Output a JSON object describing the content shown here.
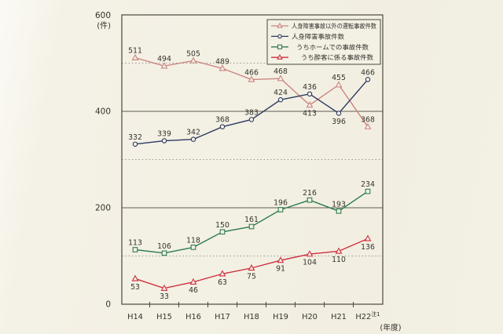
{
  "background_color": "#f3f0e4",
  "chart_data": {
    "type": "line",
    "title": "",
    "unit_label": "(件)",
    "x_axis_unit_label": "(年度)",
    "x_categories": [
      "H14",
      "H15",
      "H16",
      "H17",
      "H18",
      "H19",
      "H20",
      "H21",
      "H22"
    ],
    "x_last_category_superscript": "注1",
    "ylim": [
      0,
      600
    ],
    "y_tick_labels": [
      0,
      200,
      400,
      600
    ],
    "y_solid_gridlines": [
      200,
      400
    ],
    "y_dotted_gridlines": [
      100,
      300,
      500
    ],
    "grid": true,
    "legend_position": "top-right",
    "series": [
      {
        "id": "non-casualty-operation-accidents",
        "name": "人身障害事故以外の運転事故件数",
        "color": "#cc8580",
        "marker": "triangle",
        "values": [
          511,
          494,
          505,
          489,
          466,
          468,
          413,
          455,
          368
        ],
        "label_positions": [
          "above",
          "above",
          "above",
          "above",
          "above",
          "above",
          "below",
          "above",
          "above"
        ],
        "legend_indent": 0
      },
      {
        "id": "casualty-accidents",
        "name": "人身障害事故件数",
        "color": "#2e3a62",
        "marker": "circle",
        "values": [
          332,
          339,
          342,
          368,
          383,
          424,
          436,
          396,
          466
        ],
        "label_positions": [
          "above",
          "above",
          "above",
          "above",
          "above",
          "above",
          "above",
          "below",
          "above"
        ],
        "legend_indent": 0
      },
      {
        "id": "platform-accidents",
        "name": "うちホームでの事故件数",
        "color": "#2e7c4f",
        "marker": "square",
        "values": [
          113,
          106,
          118,
          150,
          161,
          196,
          216,
          193,
          234
        ],
        "label_positions": [
          "above",
          "above",
          "above",
          "above",
          "above",
          "above",
          "above",
          "above",
          "above"
        ],
        "legend_indent": 6
      },
      {
        "id": "drunk-passenger-accidents",
        "name": "うち酔客に係る事故件数",
        "color": "#ce2f3e",
        "marker": "triangle",
        "values": [
          53,
          33,
          46,
          63,
          75,
          91,
          104,
          110,
          136
        ],
        "label_positions": [
          "below",
          "below",
          "below",
          "below",
          "below",
          "below",
          "below",
          "below",
          "below"
        ],
        "legend_indent": 12
      }
    ]
  }
}
